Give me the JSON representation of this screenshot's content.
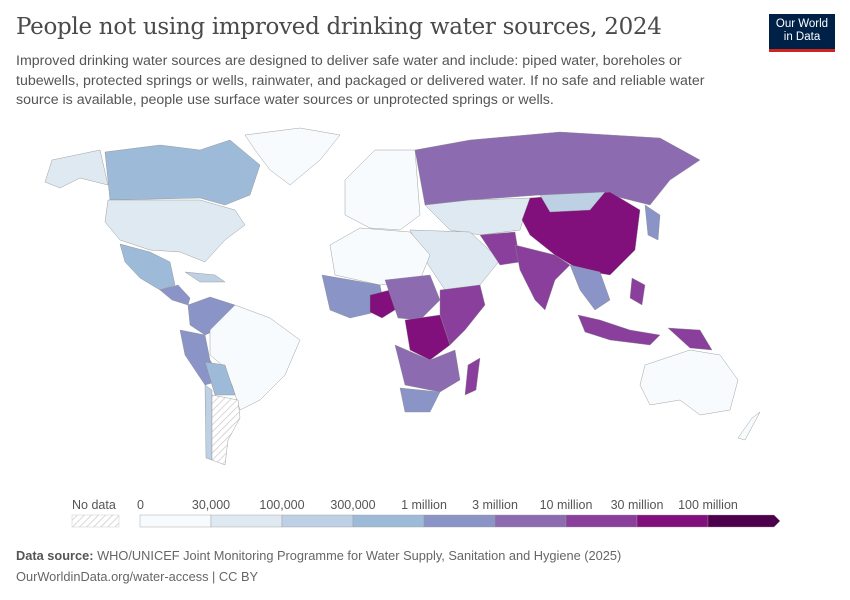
{
  "title": "People not using improved drinking water sources, 2024",
  "subtitle": "Improved drinking water sources are designed to deliver safe water and include: piped water, boreholes or tubewells, protected springs or wells, rainwater, and packaged or delivered water. If no safe and reliable water source is available, people use surface water sources or unprotected springs or wells.",
  "logo": {
    "line1": "Our World",
    "line2": "in Data"
  },
  "legend": {
    "no_data_label": "No data",
    "bins": [
      {
        "label": "0",
        "color": "#f7fbfd"
      },
      {
        "label": "30,000",
        "color": "#dee9f2"
      },
      {
        "label": "100,000",
        "color": "#bed0e4"
      },
      {
        "label": "300,000",
        "color": "#9dbbd9"
      },
      {
        "label": "1 million",
        "color": "#8a94c6"
      },
      {
        "label": "3 million",
        "color": "#8c6bb1"
      },
      {
        "label": "10 million",
        "color": "#8a3f9d"
      },
      {
        "label": "30 million",
        "color": "#810f7c"
      },
      {
        "label": "100 million",
        "color": "#4d004b"
      }
    ]
  },
  "source": {
    "label": "Data source:",
    "text": "WHO/UNICEF Joint Monitoring Programme for Water Supply, Sanitation and Hygiene (2025)"
  },
  "url": "OurWorldinData.org/water-access | CC BY"
}
